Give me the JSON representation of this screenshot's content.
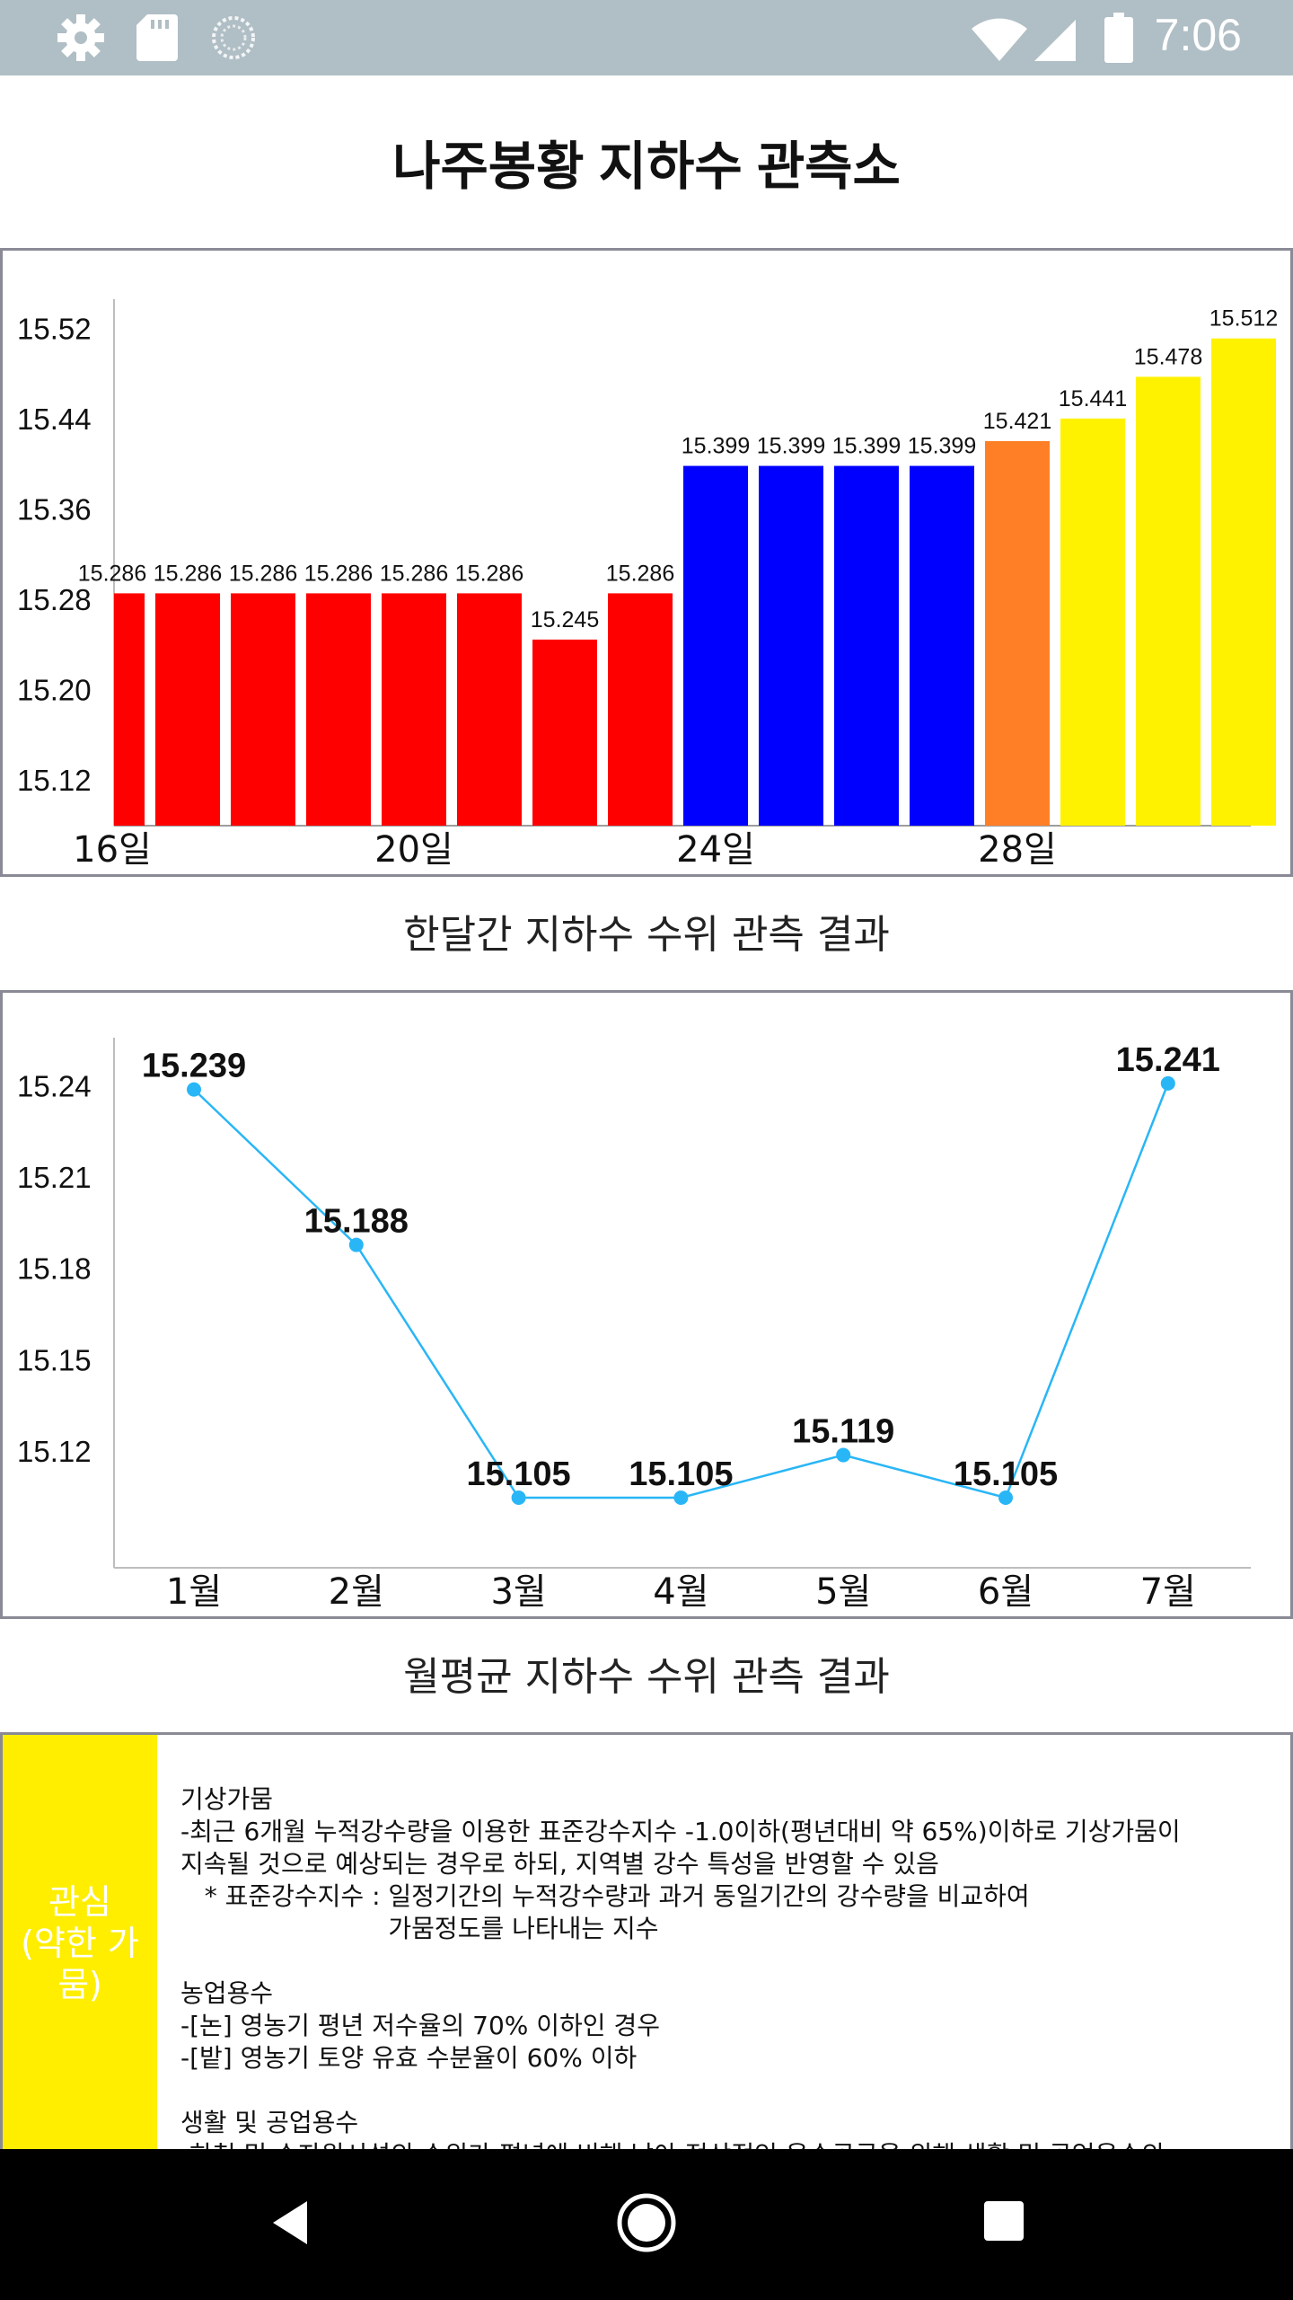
{
  "status_bar": {
    "time": "7:06",
    "left_icons": [
      "gear-icon",
      "sd-card-icon",
      "sync-icon"
    ],
    "right_icons": [
      "wifi-icon",
      "signal-icon",
      "battery-icon"
    ]
  },
  "page": {
    "title": "나주봉황 지하수 관측소"
  },
  "bar_chart": {
    "caption": "한달간 지하수 수위 관측 결과"
  },
  "line_chart": {
    "caption": "월평균 지하수 수위 관측 결과"
  },
  "info": {
    "level_label": "관심\n(약한 가뭄)",
    "level_color": "#ffee00",
    "lines": [
      "기상가뭄",
      "-최근 6개월 누적강수량을 이용한 표준강수지수 -1.0이하(평년대비 약 65%)이하로 기상가뭄이",
      "지속될 것으로 예상되는 경우로 하되, 지역별 강수 특성을 반영할 수 있음",
      "   * 표준강수지수 : 일정기간의 누적강수량과 과거 동일기간의 강수량을 비교하여",
      "                          가뭄정도를 나타내는 지수",
      "",
      "농업용수",
      "-[논] 영농기 평년 저수율의 70% 이하인 경우",
      "-[밭] 영농기 토양 유효 수분율이 60% 이하",
      "",
      "생활 및 공업용수",
      "-하천 및 수자원시설의 수위가 평년에 비해 낮아 정상적인 용수공급을 위해 생활 및 공업용수의"
    ]
  },
  "nav_bar": {
    "icons": [
      "back-icon",
      "home-icon",
      "recents-icon"
    ]
  },
  "chart_data": [
    {
      "type": "bar",
      "title": "한달간 지하수 수위 관측 결과",
      "x_tick_labels": [
        "16일",
        "20일",
        "24일",
        "28일"
      ],
      "x_tick_indices": [
        0,
        4,
        8,
        12
      ],
      "values": [
        15.286,
        15.286,
        15.286,
        15.286,
        15.286,
        15.286,
        15.245,
        15.286,
        15.399,
        15.399,
        15.399,
        15.399,
        15.421,
        15.441,
        15.478,
        15.512
      ],
      "colors": [
        "#ff0000",
        "#ff0000",
        "#ff0000",
        "#ff0000",
        "#ff0000",
        "#ff0000",
        "#ff0000",
        "#ff0000",
        "#0000ff",
        "#0000ff",
        "#0000ff",
        "#0000ff",
        "#ff7f27",
        "#fff200",
        "#fff200",
        "#fff200"
      ],
      "y_ticks": [
        "15.12",
        "15.20",
        "15.28",
        "15.36",
        "15.44",
        "15.52"
      ],
      "ylim": [
        15.08,
        15.55
      ],
      "first_bar_clipped": true,
      "grid": false
    },
    {
      "type": "line",
      "title": "월평균 지하수 수위 관측 결과",
      "categories": [
        "1월",
        "2월",
        "3월",
        "4월",
        "5월",
        "6월",
        "7월"
      ],
      "values": [
        15.239,
        15.188,
        15.105,
        15.105,
        15.119,
        15.105,
        15.241
      ],
      "y_ticks": [
        "15.12",
        "15.15",
        "15.18",
        "15.21",
        "15.24"
      ],
      "ylim": [
        15.082,
        15.256
      ],
      "line_color": "#29b6f6",
      "grid": false
    }
  ]
}
